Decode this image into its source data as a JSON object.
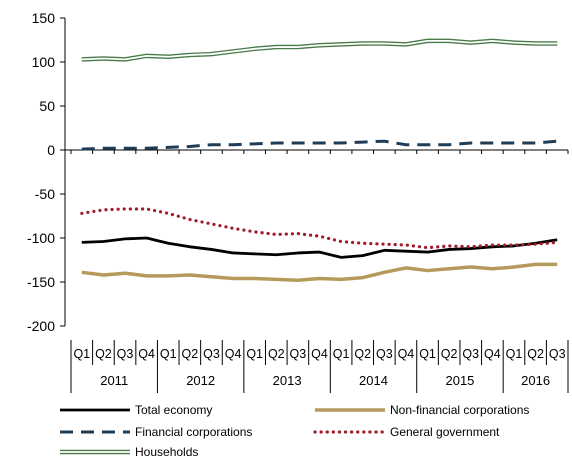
{
  "chart_data": {
    "type": "line",
    "title": "",
    "xlabel": "",
    "ylabel": "",
    "ylim": [
      -200,
      150
    ],
    "yticks": [
      150,
      100,
      50,
      0,
      -50,
      -100,
      -150,
      -200
    ],
    "grid": false,
    "legend_position": "bottom",
    "quarter_labels": [
      "Q1",
      "Q2",
      "Q3",
      "Q4",
      "Q1",
      "Q2",
      "Q3",
      "Q4",
      "Q1",
      "Q2",
      "Q3",
      "Q4",
      "Q1",
      "Q2",
      "Q3",
      "Q4",
      "Q1",
      "Q2",
      "Q3",
      "Q4",
      "Q1",
      "Q2",
      "Q3"
    ],
    "year_labels": [
      "2011",
      "2012",
      "2013",
      "2014",
      "2015",
      "2016"
    ],
    "series": [
      {
        "name": "Total economy",
        "color": "#000000",
        "style": "solid",
        "values": [
          -105,
          -104,
          -101,
          -100,
          -106,
          -110,
          -113,
          -117,
          -118,
          -119,
          -117,
          -116,
          -122,
          -120,
          -114,
          -115,
          -116,
          -113,
          -112,
          -110,
          -109,
          -106,
          -102
        ]
      },
      {
        "name": "Non-financial corporations",
        "color": "#b59a5b",
        "style": "solid-thick",
        "values": [
          -139,
          -142,
          -140,
          -143,
          -143,
          -142,
          -144,
          -146,
          -146,
          -147,
          -148,
          -146,
          -147,
          -145,
          -139,
          -134,
          -137,
          -135,
          -133,
          -135,
          -133,
          -130,
          -130
        ]
      },
      {
        "name": "Financial corporations",
        "color": "#1f3d57",
        "style": "dashed",
        "values": [
          1,
          2,
          2,
          2,
          3,
          4,
          6,
          6,
          7,
          8,
          8,
          8,
          8,
          9,
          10,
          6,
          6,
          6,
          8,
          8,
          8,
          8,
          10
        ]
      },
      {
        "name": "General government",
        "color": "#a31c2b",
        "style": "dotted",
        "values": [
          -72,
          -68,
          -67,
          -67,
          -72,
          -79,
          -84,
          -89,
          -93,
          -96,
          -95,
          -98,
          -104,
          -106,
          -107,
          -108,
          -111,
          -109,
          -110,
          -108,
          -108,
          -107,
          -105
        ]
      },
      {
        "name": "Households",
        "color": "#4a7c4a",
        "style": "double",
        "values": [
          103,
          104,
          103,
          107,
          106,
          108,
          109,
          112,
          115,
          117,
          117,
          119,
          120,
          121,
          121,
          120,
          124,
          124,
          122,
          124,
          122,
          121,
          121
        ]
      }
    ]
  }
}
